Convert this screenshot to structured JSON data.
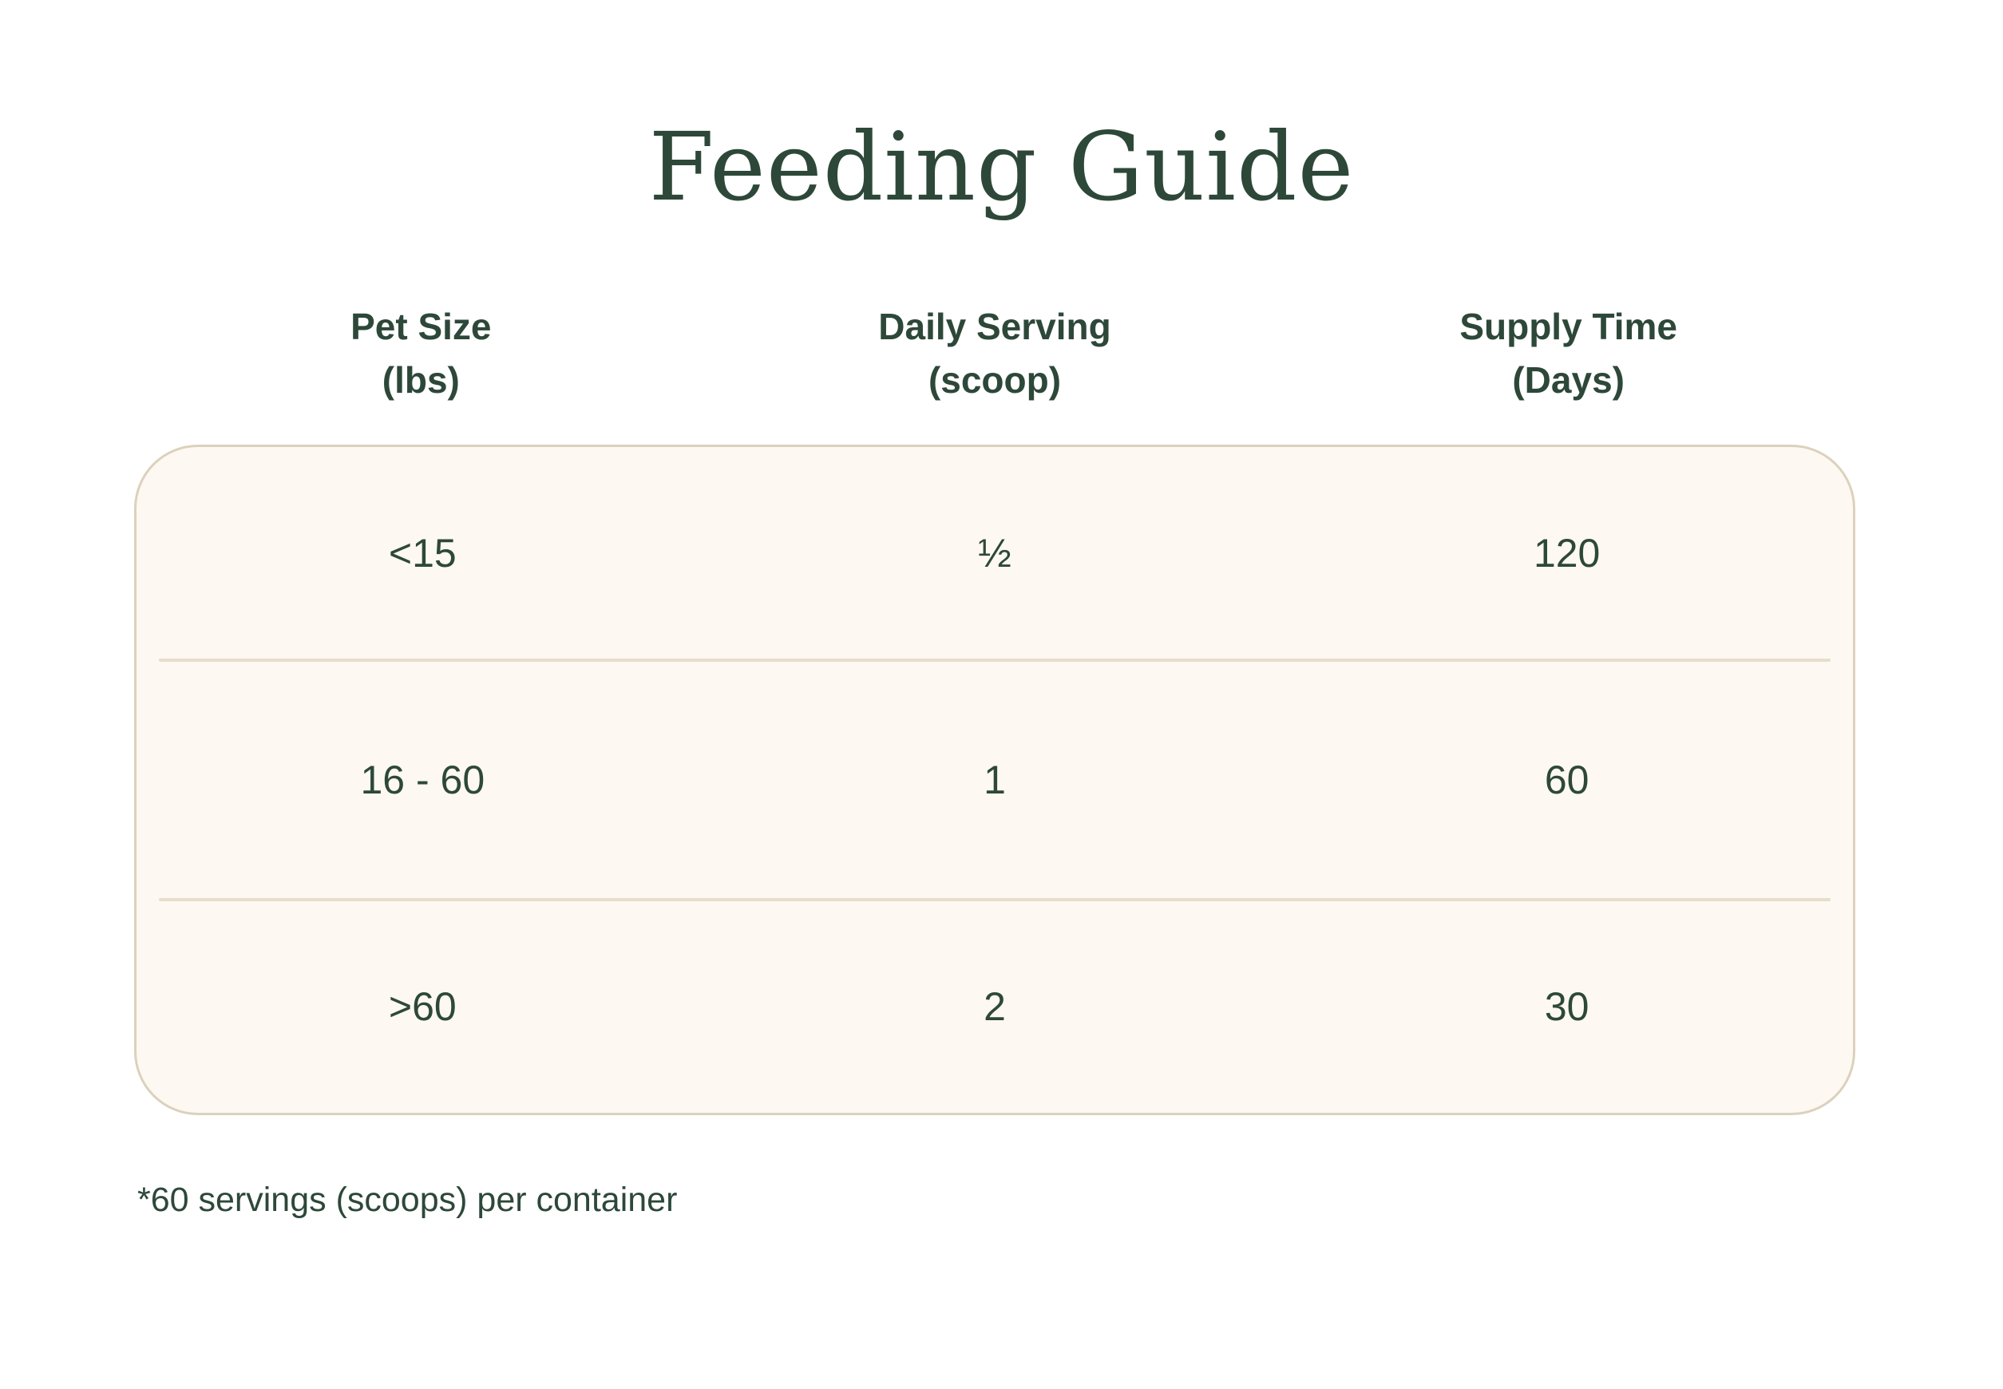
{
  "title": "Feeding Guide",
  "colors": {
    "text_green": "#2d4839",
    "card_background": "#fdf8f1",
    "card_border": "#dcd1bd",
    "divider": "#e6ddcc",
    "page_background": "#ffffff"
  },
  "table": {
    "columns": [
      {
        "label_line1": "Pet Size",
        "label_line2": "(lbs)"
      },
      {
        "label_line1": "Daily Serving",
        "label_line2": "(scoop)"
      },
      {
        "label_line1": "Supply Time",
        "label_line2": "(Days)"
      }
    ],
    "rows": [
      {
        "pet_size": "<15",
        "daily_serving": "½",
        "supply_time": "120"
      },
      {
        "pet_size": "16 - 60",
        "daily_serving": "1",
        "supply_time": "60"
      },
      {
        "pet_size": ">60",
        "daily_serving": "2",
        "supply_time": "30"
      }
    ]
  },
  "footnote": "*60 servings (scoops) per container",
  "chart_data": {
    "type": "table",
    "title": "Feeding Guide",
    "columns": [
      "Pet Size (lbs)",
      "Daily Serving (scoop)",
      "Supply Time (Days)"
    ],
    "rows": [
      [
        "<15",
        "½",
        120
      ],
      [
        "16 - 60",
        "1",
        60
      ],
      [
        ">60",
        "2",
        30
      ]
    ],
    "footnote": "*60 servings (scoops) per container"
  }
}
